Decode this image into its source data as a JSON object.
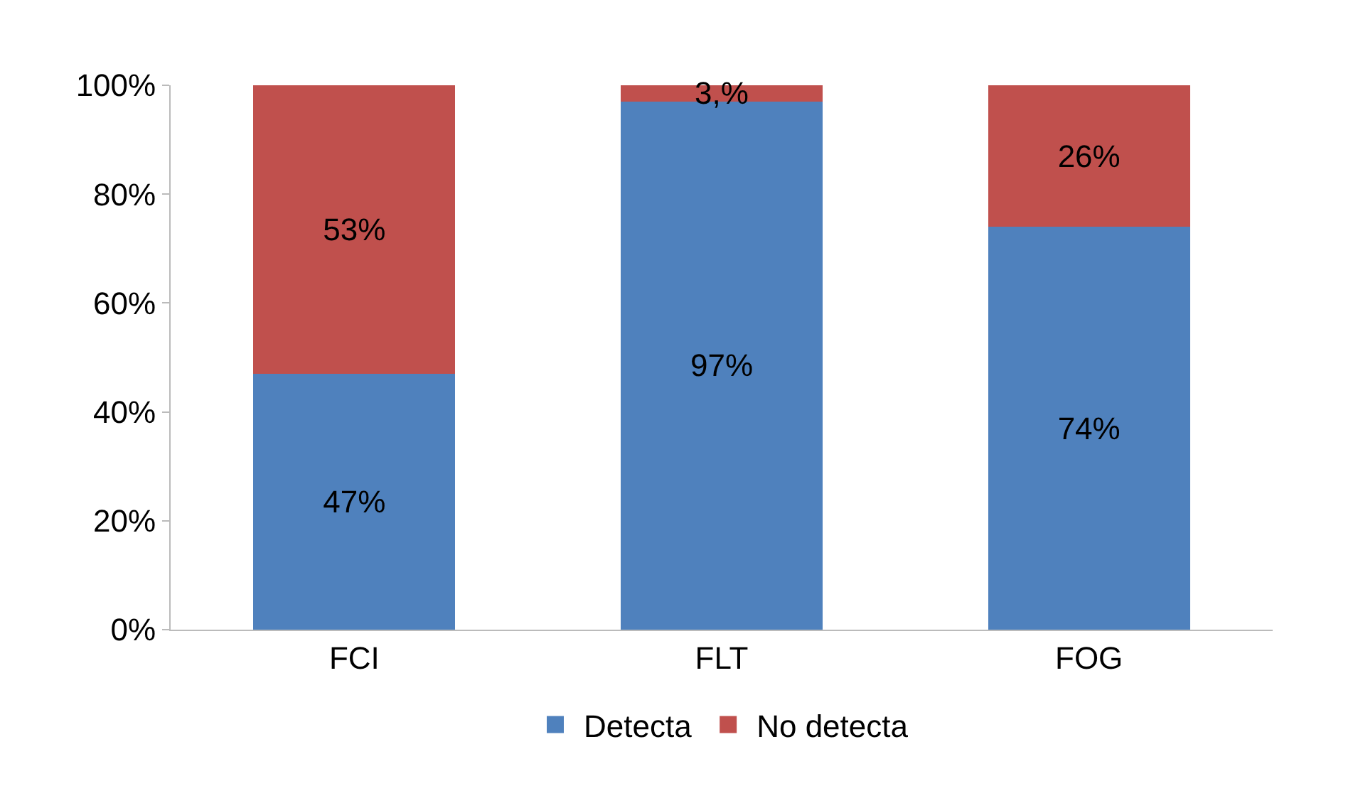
{
  "chart_data": {
    "type": "bar",
    "stacked": true,
    "categories": [
      "FCI",
      "FLT",
      "FOG"
    ],
    "series": [
      {
        "name": "Detecta",
        "color": "#4f81bd",
        "values": [
          47,
          97,
          74
        ],
        "value_labels": [
          "47%",
          "97%",
          "74%"
        ]
      },
      {
        "name": "No detecta",
        "color": "#c0504d",
        "values": [
          53,
          3,
          26
        ],
        "value_labels": [
          "53%",
          "3,%",
          "26%"
        ]
      }
    ],
    "ylim": [
      0,
      100
    ],
    "yticks": [
      {
        "value": 0,
        "label": "0%"
      },
      {
        "value": 20,
        "label": "20%"
      },
      {
        "value": 40,
        "label": "40%"
      },
      {
        "value": 60,
        "label": "60%"
      },
      {
        "value": 80,
        "label": "80%"
      },
      {
        "value": 100,
        "label": "100%"
      }
    ],
    "grid": false,
    "legend": "bottom"
  }
}
